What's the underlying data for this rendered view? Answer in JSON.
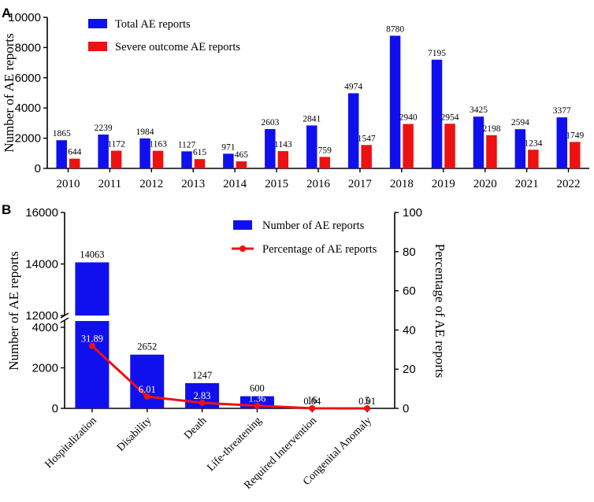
{
  "colors": {
    "blue": "#1010ee",
    "red": "#ee1111",
    "axis": "#000000",
    "white": "#ffffff"
  },
  "chart_data": [
    {
      "panel": "A",
      "type": "bar",
      "title": "",
      "xlabel": "",
      "ylabel": "Number of AE reports",
      "ylim": [
        0,
        10000
      ],
      "yticks": [
        0,
        2000,
        4000,
        6000,
        8000,
        10000
      ],
      "categories": [
        "2010",
        "2011",
        "2012",
        "2013",
        "2014",
        "2015",
        "2016",
        "2017",
        "2018",
        "2019",
        "2020",
        "2021",
        "2022"
      ],
      "series": [
        {
          "name": "Total AE reports",
          "color": "#1010ee",
          "values": [
            1865,
            2239,
            1984,
            1127,
            971,
            2603,
            2841,
            4974,
            8780,
            7195,
            3425,
            2594,
            3377
          ]
        },
        {
          "name": "Severe outcome AE reports",
          "color": "#ee1111",
          "values": [
            644,
            1172,
            1163,
            615,
            465,
            1143,
            759,
            1547,
            2940,
            2954,
            2198,
            1234,
            1749
          ]
        }
      ],
      "legend": "top-left"
    },
    {
      "panel": "B",
      "type": "bar",
      "title": "",
      "xlabel": "",
      "ylabel": "Number of AE reports",
      "y2label": "Percentage of AE reports",
      "axis_break": [
        4000,
        12000
      ],
      "ylim": [
        0,
        16000
      ],
      "yticks": [
        0,
        2000,
        4000,
        12000,
        14000,
        16000
      ],
      "y2lim": [
        0,
        100
      ],
      "y2ticks": [
        0,
        20,
        40,
        60,
        80,
        100
      ],
      "categories": [
        "Hospitalization",
        "Disability",
        "Death",
        "Life-threatening",
        "Required Intervention",
        "Congenital Anomaly"
      ],
      "bar_series": {
        "name": "Number of AE reports",
        "color": "#1010ee",
        "values": [
          14063,
          2652,
          1247,
          600,
          16,
          5
        ]
      },
      "line_series": {
        "name": "Percentage of AE reports",
        "color": "#ee1111",
        "values": [
          31.89,
          6.01,
          2.83,
          1.36,
          0.04,
          0.01
        ]
      },
      "legend": "top-right"
    }
  ]
}
